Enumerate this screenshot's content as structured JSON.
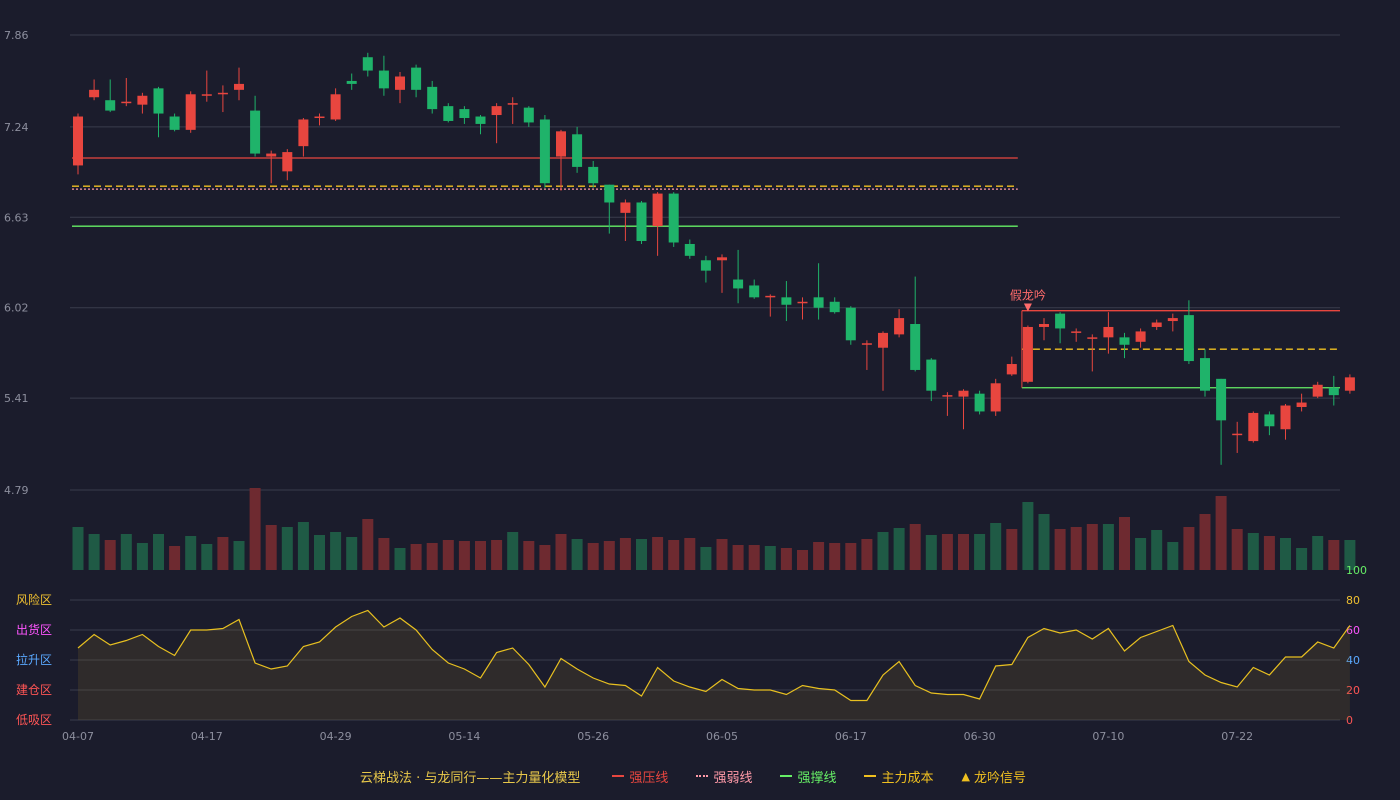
{
  "chart_data": {
    "type": "candlestick",
    "colors": {
      "background": "#1b1c2c",
      "up": "#e8463f",
      "down": "#1fb36a",
      "up_volume": "#6e2a30",
      "down_volume": "#1f5a45",
      "grid": "#3a3c4c",
      "axis_text": "#8d8f9e",
      "resistance": "#e8463f",
      "weak": "#ff9aa8",
      "support": "#66ee66",
      "cost": "#f0c020",
      "signal": "#ff6b6b",
      "oscillator_line": "#e8c020"
    },
    "price_axis": {
      "ticks": [
        "7.86",
        "7.24",
        "6.63",
        "6.02",
        "5.41",
        "4.79"
      ],
      "min": 4.79,
      "max": 7.86
    },
    "x_ticks": [
      "04-07",
      "04-17",
      "04-29",
      "05-14",
      "05-26",
      "06-05",
      "06-17",
      "06-30",
      "07-10",
      "07-22"
    ],
    "candles": [
      [
        6.98,
        7.31,
        7.33,
        6.92
      ],
      [
        7.44,
        7.49,
        7.56,
        7.42
      ],
      [
        7.42,
        7.35,
        7.56,
        7.34
      ],
      [
        7.4,
        7.41,
        7.57,
        7.38
      ],
      [
        7.39,
        7.45,
        7.47,
        7.33
      ],
      [
        7.5,
        7.33,
        7.51,
        7.17
      ],
      [
        7.31,
        7.22,
        7.33,
        7.21
      ],
      [
        7.22,
        7.46,
        7.48,
        7.2
      ],
      [
        7.46,
        7.46,
        7.62,
        7.41
      ],
      [
        7.46,
        7.47,
        7.52,
        7.34
      ],
      [
        7.49,
        7.53,
        7.64,
        7.42
      ],
      [
        7.35,
        7.06,
        7.45,
        7.04
      ],
      [
        7.04,
        7.06,
        7.08,
        6.86
      ],
      [
        6.94,
        7.07,
        7.09,
        6.88
      ],
      [
        7.11,
        7.29,
        7.3,
        7.04
      ],
      [
        7.3,
        7.31,
        7.33,
        7.25
      ],
      [
        7.29,
        7.46,
        7.5,
        7.28
      ],
      [
        7.55,
        7.53,
        7.6,
        7.49
      ],
      [
        7.71,
        7.62,
        7.74,
        7.58
      ],
      [
        7.62,
        7.5,
        7.72,
        7.45
      ],
      [
        7.49,
        7.58,
        7.61,
        7.4
      ],
      [
        7.64,
        7.49,
        7.66,
        7.44
      ],
      [
        7.51,
        7.36,
        7.55,
        7.33
      ],
      [
        7.38,
        7.28,
        7.4,
        7.27
      ],
      [
        7.36,
        7.3,
        7.38,
        7.26
      ],
      [
        7.31,
        7.26,
        7.32,
        7.19
      ],
      [
        7.32,
        7.38,
        7.4,
        7.13
      ],
      [
        7.4,
        7.4,
        7.44,
        7.26
      ],
      [
        7.37,
        7.27,
        7.38,
        7.24
      ],
      [
        7.29,
        6.86,
        7.32,
        6.83
      ],
      [
        7.04,
        7.21,
        7.22,
        6.81
      ],
      [
        7.19,
        6.97,
        7.24,
        6.93
      ],
      [
        6.97,
        6.86,
        7.01,
        6.83
      ],
      [
        6.85,
        6.73,
        6.85,
        6.52
      ],
      [
        6.66,
        6.73,
        6.75,
        6.47
      ],
      [
        6.73,
        6.47,
        6.74,
        6.45
      ],
      [
        6.57,
        6.79,
        6.8,
        6.37
      ],
      [
        6.79,
        6.46,
        6.8,
        6.43
      ],
      [
        6.45,
        6.37,
        6.48,
        6.35
      ],
      [
        6.34,
        6.27,
        6.37,
        6.19
      ],
      [
        6.34,
        6.36,
        6.38,
        6.12
      ],
      [
        6.21,
        6.15,
        6.41,
        6.05
      ],
      [
        6.17,
        6.09,
        6.21,
        6.08
      ],
      [
        6.09,
        6.1,
        6.11,
        5.96
      ],
      [
        6.09,
        6.04,
        6.2,
        5.93
      ],
      [
        6.06,
        6.06,
        6.09,
        5.94
      ],
      [
        6.09,
        6.02,
        6.32,
        5.94
      ],
      [
        6.06,
        5.99,
        6.09,
        5.98
      ],
      [
        6.02,
        5.8,
        6.03,
        5.77
      ],
      [
        5.77,
        5.78,
        5.8,
        5.6
      ],
      [
        5.75,
        5.85,
        5.86,
        5.46
      ],
      [
        5.84,
        5.95,
        6.01,
        5.82
      ],
      [
        5.91,
        5.6,
        6.23,
        5.59
      ],
      [
        5.67,
        5.46,
        5.68,
        5.39
      ],
      [
        5.43,
        5.43,
        5.45,
        5.29
      ],
      [
        5.42,
        5.46,
        5.47,
        5.2
      ],
      [
        5.44,
        5.32,
        5.46,
        5.3
      ],
      [
        5.32,
        5.51,
        5.54,
        5.29
      ],
      [
        5.57,
        5.64,
        5.69,
        5.56
      ],
      [
        5.52,
        5.89,
        5.9,
        5.51
      ],
      [
        5.89,
        5.91,
        5.95,
        5.8
      ],
      [
        5.98,
        5.88,
        5.99,
        5.78
      ],
      [
        5.85,
        5.86,
        5.88,
        5.79
      ],
      [
        5.81,
        5.82,
        5.84,
        5.59
      ],
      [
        5.82,
        5.89,
        5.99,
        5.71
      ],
      [
        5.82,
        5.77,
        5.85,
        5.68
      ],
      [
        5.79,
        5.86,
        5.88,
        5.75
      ],
      [
        5.89,
        5.92,
        5.94,
        5.87
      ],
      [
        5.93,
        5.95,
        5.98,
        5.86
      ],
      [
        5.97,
        5.66,
        6.07,
        5.64
      ],
      [
        5.68,
        5.46,
        5.74,
        5.42
      ],
      [
        5.54,
        5.26,
        5.54,
        4.96
      ],
      [
        5.16,
        5.17,
        5.25,
        5.04
      ],
      [
        5.12,
        5.31,
        5.32,
        5.11
      ],
      [
        5.3,
        5.22,
        5.32,
        5.16
      ],
      [
        5.2,
        5.36,
        5.37,
        5.13
      ],
      [
        5.35,
        5.38,
        5.44,
        5.32
      ],
      [
        5.42,
        5.5,
        5.52,
        5.41
      ],
      [
        5.48,
        5.43,
        5.56,
        5.36
      ],
      [
        5.46,
        5.55,
        5.57,
        5.44
      ]
    ],
    "volumes": [
      [
        43,
        0
      ],
      [
        36,
        0
      ],
      [
        30,
        1
      ],
      [
        36,
        0
      ],
      [
        27,
        0
      ],
      [
        36,
        0
      ],
      [
        24,
        1
      ],
      [
        34,
        0
      ],
      [
        26,
        0
      ],
      [
        33,
        1
      ],
      [
        29,
        0
      ],
      [
        82,
        1
      ],
      [
        45,
        1
      ],
      [
        43,
        0
      ],
      [
        48,
        0
      ],
      [
        35,
        0
      ],
      [
        38,
        0
      ],
      [
        33,
        0
      ],
      [
        51,
        1
      ],
      [
        32,
        1
      ],
      [
        22,
        0
      ],
      [
        26,
        1
      ],
      [
        27,
        1
      ],
      [
        30,
        1
      ],
      [
        29,
        1
      ],
      [
        29,
        1
      ],
      [
        30,
        1
      ],
      [
        38,
        0
      ],
      [
        29,
        1
      ],
      [
        25,
        1
      ],
      [
        36,
        1
      ],
      [
        31,
        0
      ],
      [
        27,
        1
      ],
      [
        29,
        1
      ],
      [
        32,
        1
      ],
      [
        31,
        0
      ],
      [
        33,
        1
      ],
      [
        30,
        1
      ],
      [
        32,
        1
      ],
      [
        23,
        0
      ],
      [
        31,
        1
      ],
      [
        25,
        1
      ],
      [
        25,
        1
      ],
      [
        24,
        0
      ],
      [
        22,
        1
      ],
      [
        20,
        1
      ],
      [
        28,
        1
      ],
      [
        27,
        1
      ],
      [
        27,
        1
      ],
      [
        31,
        1
      ],
      [
        38,
        0
      ],
      [
        42,
        0
      ],
      [
        46,
        1
      ],
      [
        35,
        0
      ],
      [
        36,
        1
      ],
      [
        36,
        1
      ],
      [
        36,
        0
      ],
      [
        47,
        0
      ],
      [
        41,
        1
      ],
      [
        68,
        0
      ],
      [
        56,
        0
      ],
      [
        41,
        1
      ],
      [
        43,
        1
      ],
      [
        46,
        1
      ],
      [
        46,
        0
      ],
      [
        53,
        1
      ],
      [
        32,
        0
      ],
      [
        40,
        0
      ],
      [
        28,
        0
      ],
      [
        43,
        1
      ],
      [
        56,
        1
      ],
      [
        74,
        1
      ],
      [
        41,
        1
      ],
      [
        37,
        0
      ],
      [
        34,
        1
      ],
      [
        32,
        0
      ],
      [
        22,
        0
      ],
      [
        34,
        0
      ],
      [
        30,
        1
      ],
      [
        30,
        0
      ]
    ],
    "oscillator": {
      "levels": [
        "风险区",
        "出货区",
        "拉升区",
        "建仓区",
        "低吸区"
      ],
      "level_colors": [
        "#f0c030",
        "#ff55ff",
        "#5aa8ff",
        "#ff5555",
        "#ff5555"
      ],
      "ticks": [
        "100",
        "80",
        "60",
        "40",
        "20",
        "0"
      ],
      "tick_colors": [
        "#66ee66",
        "#f0c030",
        "#ff55ff",
        "#5aa8ff",
        "#ff5555",
        "#ff5555"
      ],
      "values": [
        48,
        57,
        50,
        53,
        57,
        49,
        43,
        60,
        60,
        61,
        67,
        38,
        34,
        36,
        49,
        52,
        62,
        69,
        73,
        62,
        68,
        60,
        47,
        38,
        34,
        28,
        45,
        48,
        37,
        22,
        41,
        34,
        28,
        24,
        23,
        16,
        35,
        26,
        22,
        19,
        27,
        21,
        20,
        20,
        17,
        23,
        21,
        20,
        13,
        13,
        30,
        39,
        23,
        18,
        17,
        17,
        14,
        36,
        37,
        55,
        61,
        58,
        60,
        54,
        61,
        46,
        55,
        59,
        63,
        39,
        30,
        25,
        22,
        35,
        30,
        42,
        42,
        52,
        48,
        63
      ]
    },
    "lines": {
      "resistance_left": {
        "value": 7.03,
        "from": 0,
        "to": 58
      },
      "cost_left": {
        "value": 6.84,
        "from": 0,
        "to": 58
      },
      "weak_left": {
        "value": 6.82,
        "from": 0,
        "to": 58
      },
      "support_left": {
        "value": 6.57,
        "from": 0,
        "to": 58
      },
      "resistance_right": {
        "value": 6.0,
        "from": 59,
        "to": 79
      },
      "cost_right": {
        "value": 5.74,
        "from": 59,
        "to": 79
      },
      "support_right": {
        "value": 5.48,
        "from": 59,
        "to": 79
      }
    },
    "signal": {
      "label": "假龙吟",
      "index": 59
    },
    "legend": {
      "title": "云梯战法 · 与龙同行——主力量化模型",
      "items": [
        {
          "label": "强压线",
          "color": "#e8463f",
          "style": "solid"
        },
        {
          "label": "强弱线",
          "color": "#ff9aa8",
          "style": "dotted"
        },
        {
          "label": "强撑线",
          "color": "#66ee66",
          "style": "solid"
        },
        {
          "label": "主力成本",
          "color": "#f0c020",
          "style": "dashed"
        },
        {
          "label": "龙吟信号",
          "color": "#f0c020",
          "style": "triangle"
        }
      ]
    }
  }
}
